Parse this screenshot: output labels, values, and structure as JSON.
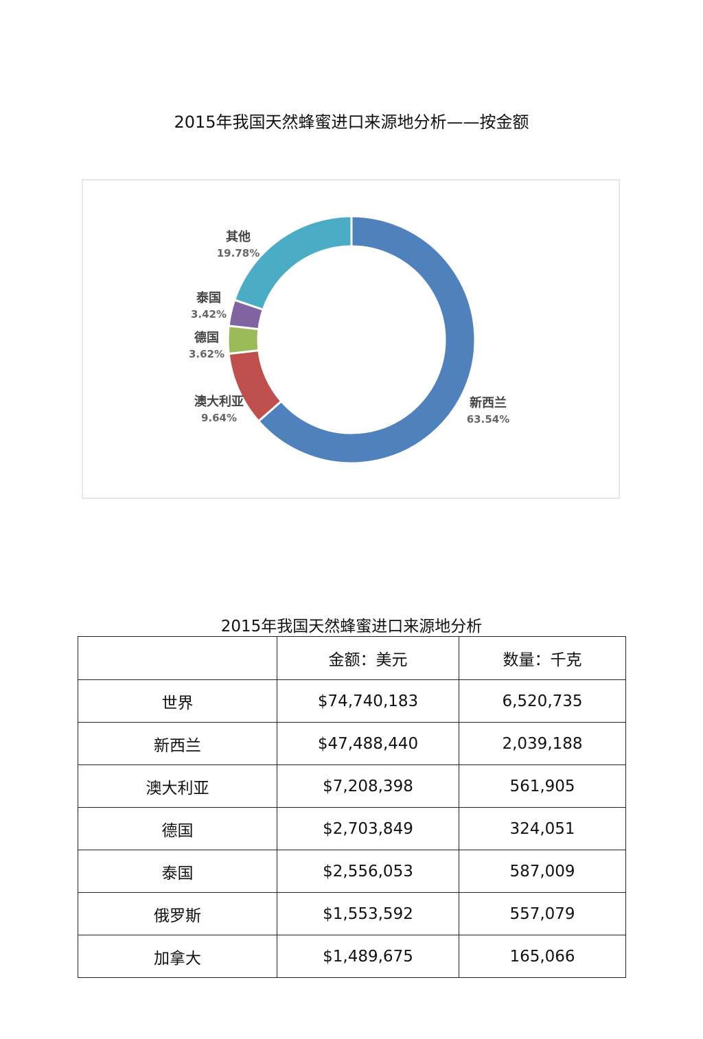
{
  "chart_data": {
    "type": "pie",
    "title": "2015年我国天然蜂蜜进口来源地分析——按金额",
    "categories": [
      "新西兰",
      "澳大利亚",
      "德国",
      "泰国",
      "其他"
    ],
    "values": [
      63.54,
      9.64,
      3.62,
      3.42,
      19.78
    ],
    "labels": [
      "63.54%",
      "9.64%",
      "3.62%",
      "3.42%",
      "19.78%"
    ],
    "colors": [
      "#4f81bd",
      "#c0504d",
      "#9bbb59",
      "#8064a2",
      "#4bacc6"
    ],
    "donut": true,
    "legend": "none"
  },
  "table": {
    "title": "2015年我国天然蜂蜜进口来源地分析",
    "headers": [
      "",
      "金额：美元",
      "数量：千克"
    ],
    "rows": [
      [
        "世界",
        "$74,740,183",
        "6,520,735"
      ],
      [
        "新西兰",
        "$47,488,440",
        "2,039,188"
      ],
      [
        "澳大利亚",
        "$7,208,398",
        "561,905"
      ],
      [
        "德国",
        "$2,703,849",
        "324,051"
      ],
      [
        "泰国",
        "$2,556,053",
        "587,009"
      ],
      [
        "俄罗斯",
        "$1,553,592",
        "557,079"
      ],
      [
        "加拿大",
        "$1,489,675",
        "165,066"
      ]
    ]
  }
}
